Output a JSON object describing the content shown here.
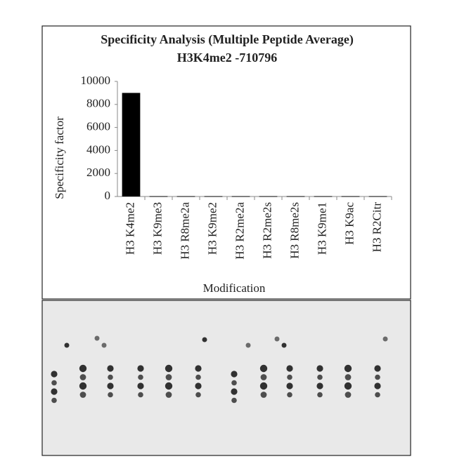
{
  "chart_data": {
    "type": "bar",
    "title": "Specificity Analysis  (Multiple Peptide Average)",
    "subtitle": "H3K4me2 -710796",
    "x_label": "Modification",
    "y_label": "Specificity factor",
    "categories": [
      "H3 K4me2",
      "H3 K9me3",
      "H3 R8me2a",
      "H3 K9me2",
      "H3 R2me2a",
      "H3 R2me2s",
      "H3 R8me2s",
      "H3 K9me1",
      "H3 K9ac",
      "H3 R2Citr"
    ],
    "values": [
      9000,
      30,
      30,
      30,
      30,
      30,
      30,
      30,
      30,
      30
    ],
    "color": "#000000",
    "ylim": [
      0,
      10000
    ],
    "yticks": [
      0,
      2000,
      4000,
      6000,
      8000,
      10000
    ],
    "grid": false
  }
}
